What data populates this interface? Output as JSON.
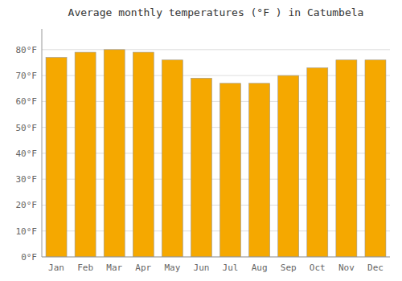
{
  "chart_data": {
    "type": "bar",
    "title": "Average monthly temperatures (°F ) in Catumbela",
    "categories": [
      "Jan",
      "Feb",
      "Mar",
      "Apr",
      "May",
      "Jun",
      "Jul",
      "Aug",
      "Sep",
      "Oct",
      "Nov",
      "Dec"
    ],
    "values": [
      77,
      79,
      80,
      79,
      76,
      69,
      67,
      67,
      70,
      73,
      76,
      76
    ],
    "color": "#F5A800",
    "ylim": [
      0,
      88
    ],
    "yticks": [
      {
        "value": 0,
        "label": "0°F"
      },
      {
        "value": 10,
        "label": "10°F"
      },
      {
        "value": 20,
        "label": "20°F"
      },
      {
        "value": 30,
        "label": "30°F"
      },
      {
        "value": 40,
        "label": "40°F"
      },
      {
        "value": 50,
        "label": "50°F"
      },
      {
        "value": 60,
        "label": "60°F"
      },
      {
        "value": 70,
        "label": "70°F"
      },
      {
        "value": 80,
        "label": "80°F"
      }
    ],
    "grid": true
  }
}
